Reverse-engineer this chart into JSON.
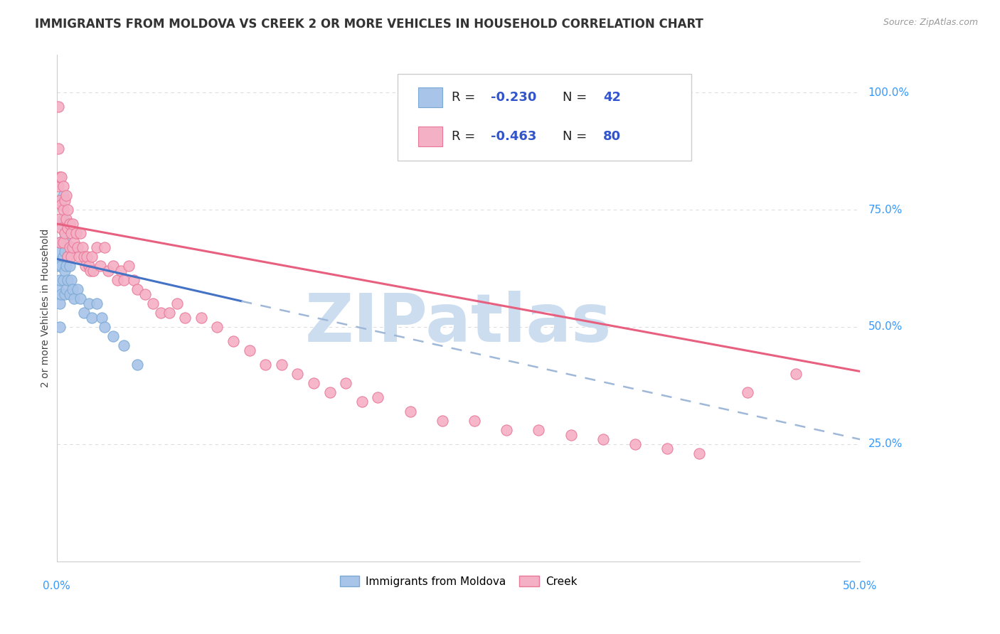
{
  "title": "IMMIGRANTS FROM MOLDOVA VS CREEK 2 OR MORE VEHICLES IN HOUSEHOLD CORRELATION CHART",
  "source": "Source: ZipAtlas.com",
  "ylabel": "2 or more Vehicles in Household",
  "ytick_labels": [
    "25.0%",
    "50.0%",
    "75.0%",
    "100.0%"
  ],
  "ytick_values": [
    0.25,
    0.5,
    0.75,
    1.0
  ],
  "xlim": [
    0.0,
    0.5
  ],
  "ylim": [
    0.0,
    1.08
  ],
  "legend_R1": "-0.230",
  "legend_N1": "42",
  "legend_R2": "-0.463",
  "legend_N2": "80",
  "watermark": "ZIPatlas",
  "scatter_moldova": {
    "x": [
      0.001,
      0.001,
      0.001,
      0.002,
      0.002,
      0.002,
      0.002,
      0.002,
      0.003,
      0.003,
      0.003,
      0.003,
      0.003,
      0.004,
      0.004,
      0.004,
      0.004,
      0.005,
      0.005,
      0.005,
      0.005,
      0.006,
      0.006,
      0.006,
      0.007,
      0.007,
      0.008,
      0.008,
      0.009,
      0.01,
      0.011,
      0.013,
      0.015,
      0.017,
      0.02,
      0.022,
      0.025,
      0.028,
      0.03,
      0.035,
      0.042,
      0.05
    ],
    "y": [
      0.63,
      0.66,
      0.58,
      0.68,
      0.72,
      0.6,
      0.55,
      0.5,
      0.77,
      0.72,
      0.68,
      0.63,
      0.57,
      0.78,
      0.73,
      0.65,
      0.6,
      0.7,
      0.66,
      0.62,
      0.57,
      0.68,
      0.63,
      0.58,
      0.65,
      0.6,
      0.63,
      0.57,
      0.6,
      0.58,
      0.56,
      0.58,
      0.56,
      0.53,
      0.55,
      0.52,
      0.55,
      0.52,
      0.5,
      0.48,
      0.46,
      0.42
    ],
    "color": "#a8c4e8",
    "edgecolor": "#7aaad4"
  },
  "scatter_creek": {
    "x": [
      0.001,
      0.001,
      0.001,
      0.002,
      0.002,
      0.002,
      0.002,
      0.003,
      0.003,
      0.003,
      0.004,
      0.004,
      0.004,
      0.005,
      0.005,
      0.006,
      0.006,
      0.007,
      0.007,
      0.007,
      0.008,
      0.008,
      0.009,
      0.009,
      0.01,
      0.01,
      0.011,
      0.012,
      0.013,
      0.014,
      0.015,
      0.016,
      0.017,
      0.018,
      0.019,
      0.02,
      0.021,
      0.022,
      0.023,
      0.025,
      0.027,
      0.03,
      0.032,
      0.035,
      0.038,
      0.04,
      0.042,
      0.045,
      0.048,
      0.05,
      0.055,
      0.06,
      0.065,
      0.07,
      0.075,
      0.08,
      0.09,
      0.1,
      0.11,
      0.12,
      0.13,
      0.14,
      0.15,
      0.16,
      0.17,
      0.18,
      0.19,
      0.2,
      0.22,
      0.24,
      0.26,
      0.28,
      0.3,
      0.32,
      0.34,
      0.36,
      0.38,
      0.4,
      0.43,
      0.46
    ],
    "y": [
      0.97,
      0.88,
      0.8,
      0.82,
      0.77,
      0.73,
      0.68,
      0.82,
      0.76,
      0.71,
      0.8,
      0.75,
      0.68,
      0.77,
      0.7,
      0.78,
      0.73,
      0.75,
      0.71,
      0.65,
      0.72,
      0.67,
      0.7,
      0.65,
      0.72,
      0.67,
      0.68,
      0.7,
      0.67,
      0.65,
      0.7,
      0.67,
      0.65,
      0.63,
      0.65,
      0.63,
      0.62,
      0.65,
      0.62,
      0.67,
      0.63,
      0.67,
      0.62,
      0.63,
      0.6,
      0.62,
      0.6,
      0.63,
      0.6,
      0.58,
      0.57,
      0.55,
      0.53,
      0.53,
      0.55,
      0.52,
      0.52,
      0.5,
      0.47,
      0.45,
      0.42,
      0.42,
      0.4,
      0.38,
      0.36,
      0.38,
      0.34,
      0.35,
      0.32,
      0.3,
      0.3,
      0.28,
      0.28,
      0.27,
      0.26,
      0.25,
      0.24,
      0.23,
      0.36,
      0.4
    ],
    "color": "#f4b0c4",
    "edgecolor": "#e87898"
  },
  "line_moldova": {
    "x0": 0.0,
    "x1": 0.115,
    "y0": 0.645,
    "y1": 0.555,
    "color": "#4472c4",
    "linestyle": "-"
  },
  "line_moldova_ext": {
    "x0": 0.115,
    "x1": 0.5,
    "y0": 0.555,
    "y1": 0.26,
    "color": "#a0b8d8",
    "linestyle": "--"
  },
  "line_creek": {
    "x0": 0.0,
    "x1": 0.5,
    "y0": 0.72,
    "y1": 0.405,
    "color": "#e86080",
    "linestyle": "-"
  },
  "background_color": "#ffffff",
  "grid_color": "#dddddd",
  "title_fontsize": 12,
  "axis_label_fontsize": 10,
  "tick_fontsize": 11,
  "legend_fontsize": 13,
  "watermark_color": "#ccddf0",
  "watermark_fontsize": 68
}
